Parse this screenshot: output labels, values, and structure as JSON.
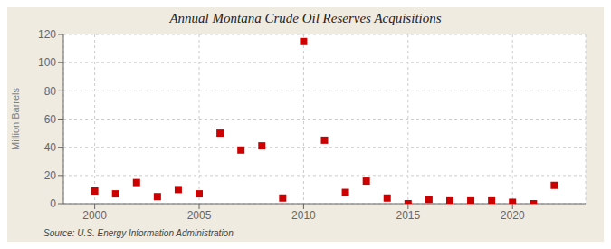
{
  "chart_data": {
    "type": "scatter",
    "title": "Annual Montana Crude Oil Reserves Acquisitions",
    "ylabel": "Million Barrels",
    "annotation": "Source: U.S. Energy Information Administration",
    "x": [
      2000,
      2001,
      2002,
      2003,
      2004,
      2005,
      2006,
      2007,
      2008,
      2009,
      2010,
      2011,
      2012,
      2013,
      2014,
      2015,
      2016,
      2017,
      2018,
      2019,
      2020,
      2021,
      2022
    ],
    "values": [
      9,
      7,
      15,
      5,
      10,
      7,
      50,
      38,
      41,
      4,
      115,
      45,
      8,
      16,
      4,
      0,
      3,
      2,
      2,
      2,
      1,
      0,
      13
    ],
    "color": "#cc0000",
    "marker": "square",
    "xlim": [
      1998.5,
      2023.5
    ],
    "xticks": [
      2000,
      2005,
      2010,
      2015,
      2020
    ],
    "ylim": [
      0,
      120
    ],
    "yticks": [
      0,
      20,
      40,
      60,
      80,
      100,
      120
    ],
    "grid": true
  }
}
